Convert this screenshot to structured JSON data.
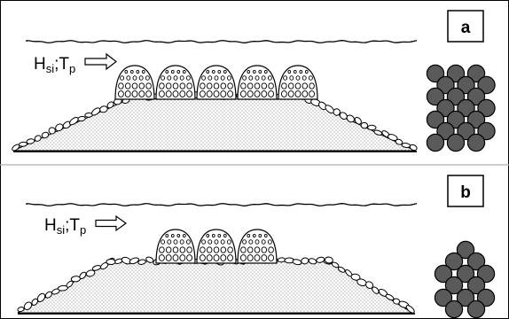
{
  "panels": [
    {
      "id": "a",
      "label": "a",
      "wave_label": {
        "H": "H",
        "H_sub": "si",
        "sep": ";",
        "T": "T",
        "T_sub": "p"
      },
      "units": 5,
      "pattern": "staggered 5x7"
    },
    {
      "id": "b",
      "label": "b",
      "wave_label": {
        "H": "H",
        "H_sub": "si",
        "sep": ";",
        "T": "T",
        "T_sub": "p"
      },
      "units": 3,
      "pattern": "hexagonal 3-4-3-4-3"
    }
  ],
  "colors": {
    "background": "#ffffff",
    "lines": "#000000",
    "core_fill": "#ffffff",
    "core_dots": "#555555",
    "armour_disc": "#5a5a5a",
    "rubble": "#ffffff",
    "divider": "#b0b0b0"
  },
  "icons": [
    "wave-arrow-icon",
    "armour-unit-icon",
    "placement-pattern-icon"
  ]
}
